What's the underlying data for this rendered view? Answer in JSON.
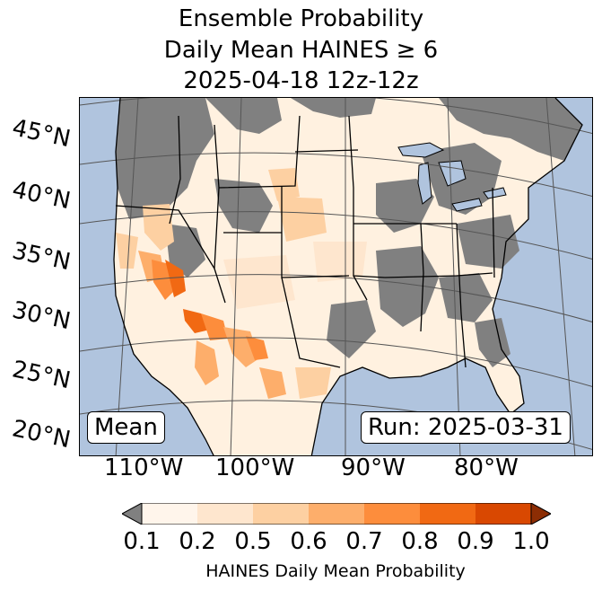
{
  "title": {
    "line1": "Ensemble Probability",
    "line2": "Daily Mean HAINES ≥ 6",
    "line3": "2025-04-18 12z-12z"
  },
  "map": {
    "latitude_labels": [
      "45°N",
      "40°N",
      "35°N",
      "30°N",
      "25°N",
      "20°N"
    ],
    "longitude_labels": [
      "110°W",
      "100°W",
      "90°W",
      "80°W"
    ],
    "mean_label": "Mean",
    "run_label": "Run: 2025-03-31",
    "colors": {
      "ocean": "#b0c4de",
      "missing": "#808080",
      "lakes": "#b0c4de",
      "borders": "#000000",
      "graticule": "#555555"
    }
  },
  "colorbar": {
    "tick_labels": [
      "0.1",
      "0.2",
      "0.5",
      "0.6",
      "0.7",
      "0.8",
      "0.9",
      "1.0"
    ],
    "colors": [
      "#fff5eb",
      "#fee6ce",
      "#fdd0a2",
      "#fdae6b",
      "#fd8d3c",
      "#f16913",
      "#d94801"
    ],
    "under_color": "#808080",
    "over_color": "#8c2d04",
    "label": "HAINES Daily Mean Probability"
  }
}
